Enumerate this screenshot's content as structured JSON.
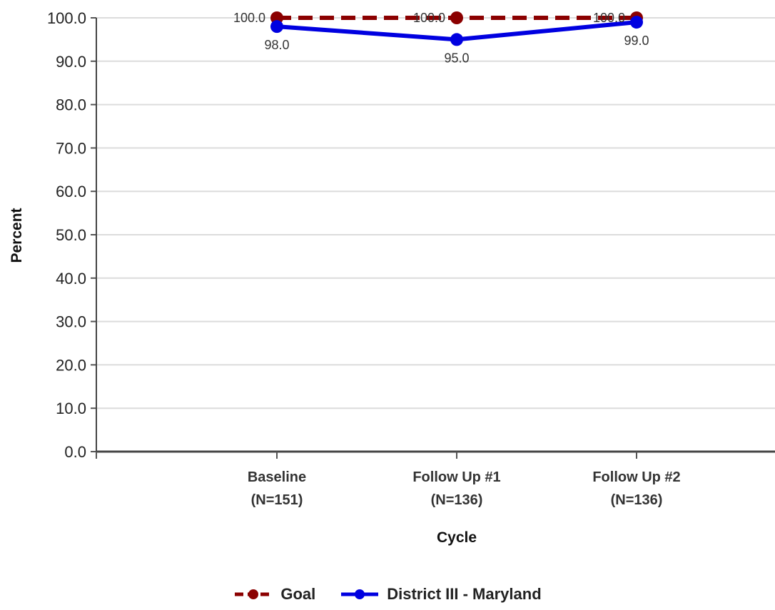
{
  "chart_data": {
    "type": "line",
    "categories": [
      "Baseline\n(N=151)",
      "Follow Up #1\n(N=136)",
      "Follow Up #2\n(N=136)"
    ],
    "xlabel": "Cycle",
    "ylabel": "Percent",
    "ylim": [
      0,
      100
    ],
    "yticks": [
      "0.0",
      "10.0",
      "20.0",
      "30.0",
      "40.0",
      "50.0",
      "60.0",
      "70.0",
      "80.0",
      "90.0",
      "100.0"
    ],
    "grid": true,
    "legend_position": "bottom",
    "series": [
      {
        "name": "Goal",
        "values": [
          100.0,
          100.0,
          100.0
        ],
        "labels": [
          "100.0",
          "100.0",
          "100.0"
        ],
        "color": "#8b0000",
        "dashed": true
      },
      {
        "name": "District III - Maryland",
        "values": [
          98.0,
          95.0,
          99.0
        ],
        "labels": [
          "98.0",
          "95.0",
          "99.0"
        ],
        "color": "#0000e0",
        "dashed": false
      }
    ]
  }
}
